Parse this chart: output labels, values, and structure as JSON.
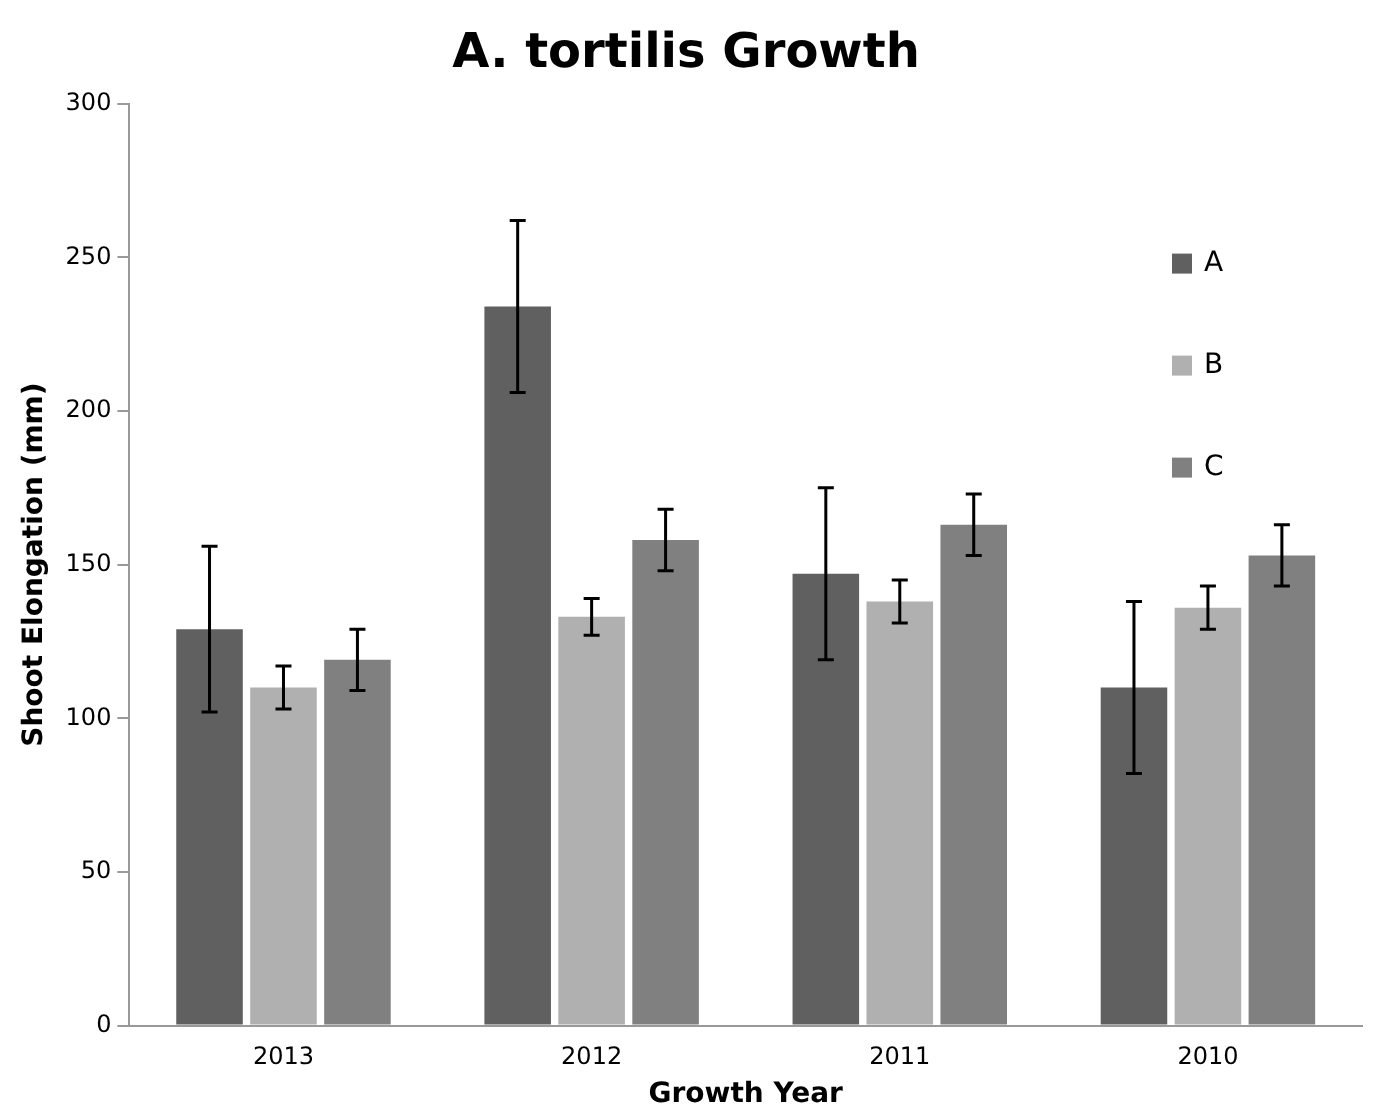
{
  "chart_data": {
    "type": "bar",
    "title": "A. tortilis Growth",
    "xlabel": "Growth Year",
    "ylabel": "Shoot Elongation (mm)",
    "categories": [
      "2013",
      "2012",
      "2011",
      "2010"
    ],
    "series": [
      {
        "name": "A",
        "color": "#606060",
        "values": [
          129,
          234,
          147,
          110
        ],
        "errors": [
          27,
          28,
          28,
          28
        ]
      },
      {
        "name": "B",
        "color": "#b0b0b0",
        "values": [
          110,
          133,
          138,
          136
        ],
        "errors": [
          7,
          6,
          7,
          7
        ]
      },
      {
        "name": "C",
        "color": "#808080",
        "values": [
          119,
          158,
          163,
          153
        ],
        "errors": [
          10,
          10,
          10,
          10
        ]
      }
    ],
    "ylim": [
      0,
      300
    ],
    "yticks": [
      0,
      50,
      100,
      150,
      200,
      250,
      300
    ],
    "grid": false,
    "legend": "top right"
  }
}
